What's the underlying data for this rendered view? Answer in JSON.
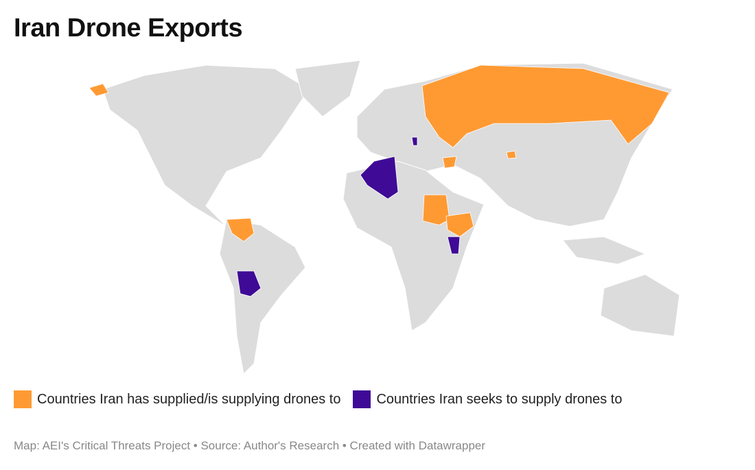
{
  "header": {
    "title": "Iran Drone Exports"
  },
  "legend": [
    {
      "name": "Countries Iran has supplied/is supplying drones to",
      "color": "#ff9a33"
    },
    {
      "name": "Countries Iran seeks to supply drones to",
      "color": "#3f0a96"
    }
  ],
  "footer": "Map: AEI's Critical Threats Project • Source: Author's Research • Created with Datawrapper"
}
